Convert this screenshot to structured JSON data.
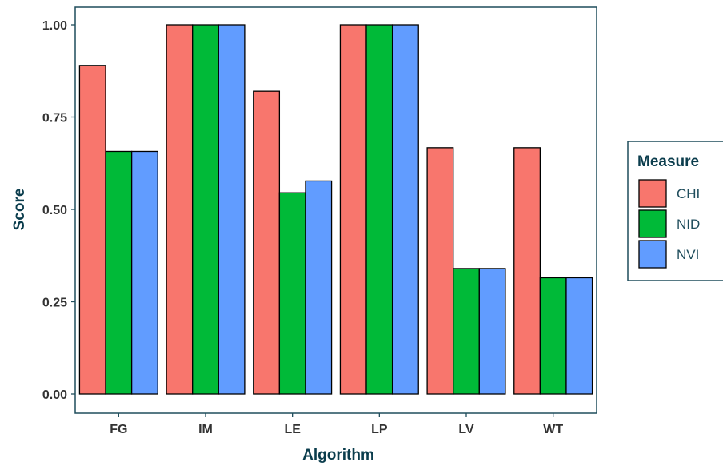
{
  "chart_data": {
    "type": "bar",
    "xlabel": "Algorithm",
    "ylabel": "Score",
    "categories": [
      "FG",
      "IM",
      "LE",
      "LP",
      "LV",
      "WT"
    ],
    "ylim": [
      0,
      1.04
    ],
    "yticks": [
      0.0,
      0.25,
      0.5,
      0.75,
      1.0
    ],
    "ytick_labels": [
      "0.00",
      "0.25",
      "0.50",
      "0.75",
      "1.00"
    ],
    "series": [
      {
        "name": "CHI",
        "color": "#F8766D",
        "values": [
          0.89,
          1.0,
          0.82,
          1.0,
          0.667,
          0.667
        ]
      },
      {
        "name": "NID",
        "color": "#00BA38",
        "values": [
          0.657,
          1.0,
          0.545,
          1.0,
          0.34,
          0.315
        ]
      },
      {
        "name": "NVI",
        "color": "#619CFF",
        "values": [
          0.657,
          1.0,
          0.577,
          1.0,
          0.34,
          0.315
        ]
      }
    ],
    "legend": {
      "title": "Measure",
      "placement": "right"
    },
    "grid": false
  }
}
